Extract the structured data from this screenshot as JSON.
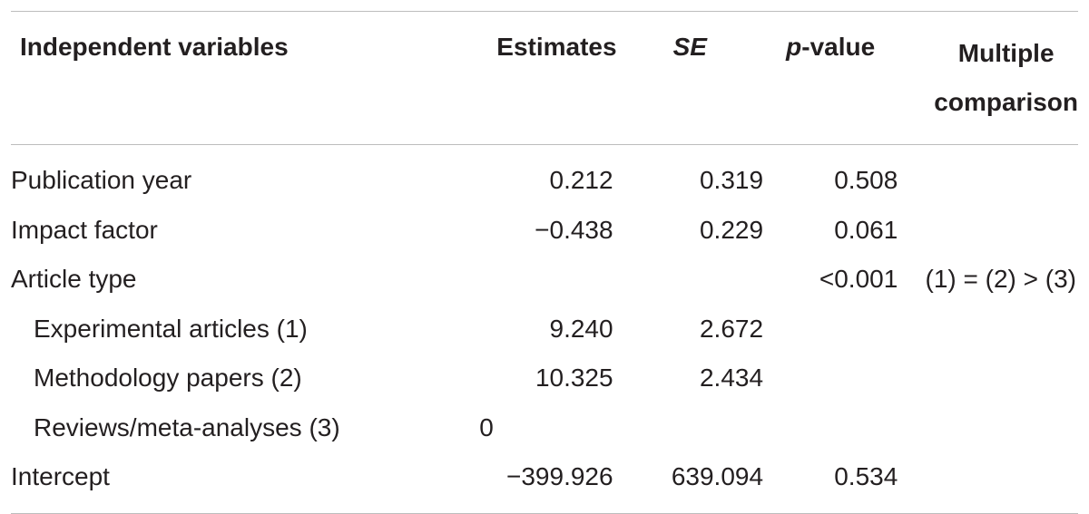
{
  "table": {
    "header": [
      "Independent variables",
      "Estimates",
      "SE",
      "p-value",
      "Multiple comparison"
    ],
    "rows": [
      [
        "Publication year",
        "0.212",
        "0.319",
        "0.508",
        null
      ],
      [
        "Impact factor",
        "−0.438",
        "0.229",
        "0.061",
        null
      ],
      [
        "Article type",
        null,
        null,
        "<0.001",
        "(1) = (2) > (3)"
      ],
      [
        "Experimental articles (1)",
        "9.240",
        "2.672",
        null,
        null
      ],
      [
        "Methodology papers (2)",
        "10.325",
        "2.434",
        null,
        null
      ],
      [
        "Reviews/meta-analyses (3)",
        "0",
        null,
        null,
        null
      ],
      [
        "Intercept",
        "−399.926",
        "639.094",
        "0.534",
        null
      ]
    ]
  }
}
